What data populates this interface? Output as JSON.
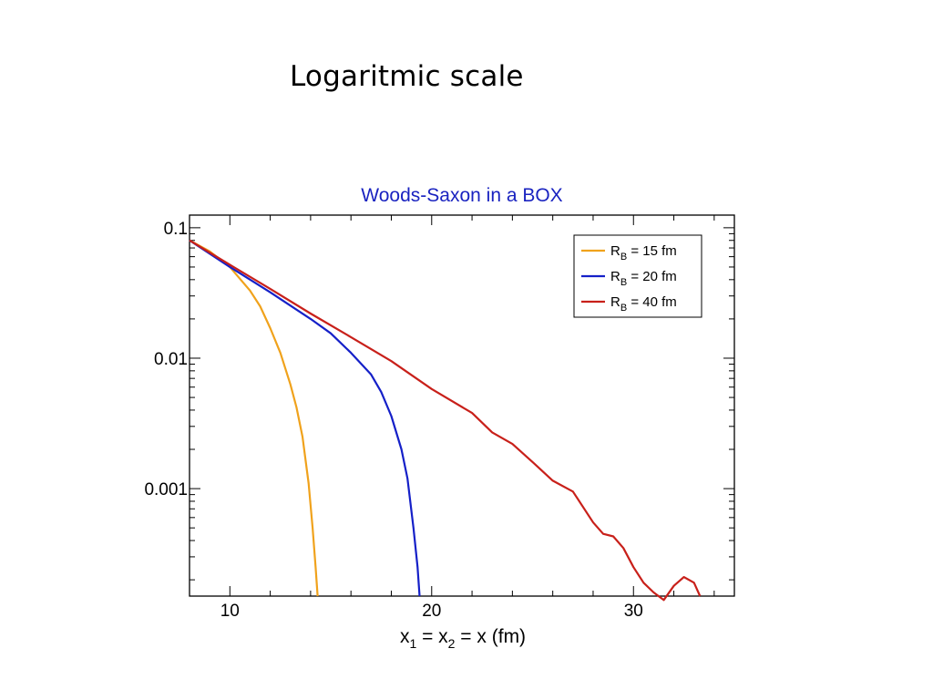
{
  "slide": {
    "title": "Logaritmic scale"
  },
  "chart_data": {
    "type": "line",
    "title": "Woods-Saxon in a BOX",
    "title_color": "#1a23c0",
    "xlabel": "x_1 = x_2 = x (fm)",
    "xlabel_parts": {
      "x1": "x",
      "sub1": "1",
      "eq1": " = x",
      "sub2": "2",
      "rest": " = x (fm)"
    },
    "ylabel": "",
    "y_scale": "log",
    "xlim": [
      8,
      35
    ],
    "ylim": [
      0.00015,
      0.125
    ],
    "x_ticks": [
      {
        "value": 10,
        "label": "10"
      },
      {
        "value": 20,
        "label": "20"
      },
      {
        "value": 30,
        "label": "30"
      }
    ],
    "y_ticks": [
      {
        "value": 0.1,
        "label": "0.1"
      },
      {
        "value": 0.01,
        "label": "0.01"
      },
      {
        "value": 0.001,
        "label": "0.001"
      }
    ],
    "legend_position": "top-right",
    "series": [
      {
        "name": "R_B = 15 fm",
        "label_main": "R",
        "label_sub": "B",
        "label_rest": " = 15 fm",
        "color": "#f0a21c",
        "x": [
          8.0,
          9.0,
          10.0,
          11.0,
          11.5,
          12.0,
          12.5,
          13.0,
          13.3,
          13.6,
          13.9,
          14.1,
          14.25,
          14.35
        ],
        "y": [
          0.08,
          0.066,
          0.05,
          0.033,
          0.025,
          0.017,
          0.011,
          0.0063,
          0.0042,
          0.0025,
          0.0011,
          0.0005,
          0.00025,
          0.00015
        ]
      },
      {
        "name": "R_B = 20 fm",
        "label_main": "R",
        "label_sub": "B",
        "label_rest": " = 20 fm",
        "color": "#1520c8",
        "x": [
          8.0,
          10.0,
          12.0,
          14.0,
          15.0,
          16.0,
          17.0,
          17.5,
          18.0,
          18.5,
          18.8,
          19.1,
          19.3,
          19.4
        ],
        "y": [
          0.08,
          0.05,
          0.032,
          0.02,
          0.0155,
          0.011,
          0.0075,
          0.0055,
          0.0036,
          0.002,
          0.0012,
          0.0005,
          0.00025,
          0.00015
        ]
      },
      {
        "name": "R_B = 40 fm",
        "label_main": "R",
        "label_sub": "B",
        "label_rest": " = 40 fm",
        "color": "#c8201a",
        "x": [
          8.0,
          10.0,
          12.0,
          14.0,
          16.0,
          18.0,
          20.0,
          22.0,
          23.0,
          24.0,
          25.0,
          26.0,
          27.0,
          28.0,
          28.5,
          29.0,
          29.5,
          30.0,
          30.5,
          31.0,
          31.5,
          32.0,
          32.5,
          33.0,
          33.3
        ],
        "y": [
          0.08,
          0.052,
          0.034,
          0.022,
          0.0145,
          0.0095,
          0.0058,
          0.0038,
          0.0027,
          0.0022,
          0.0016,
          0.00115,
          0.00095,
          0.00055,
          0.00045,
          0.00043,
          0.00035,
          0.00025,
          0.00019,
          0.00016,
          0.00014,
          0.00018,
          0.00021,
          0.00019,
          0.00015
        ]
      }
    ]
  }
}
